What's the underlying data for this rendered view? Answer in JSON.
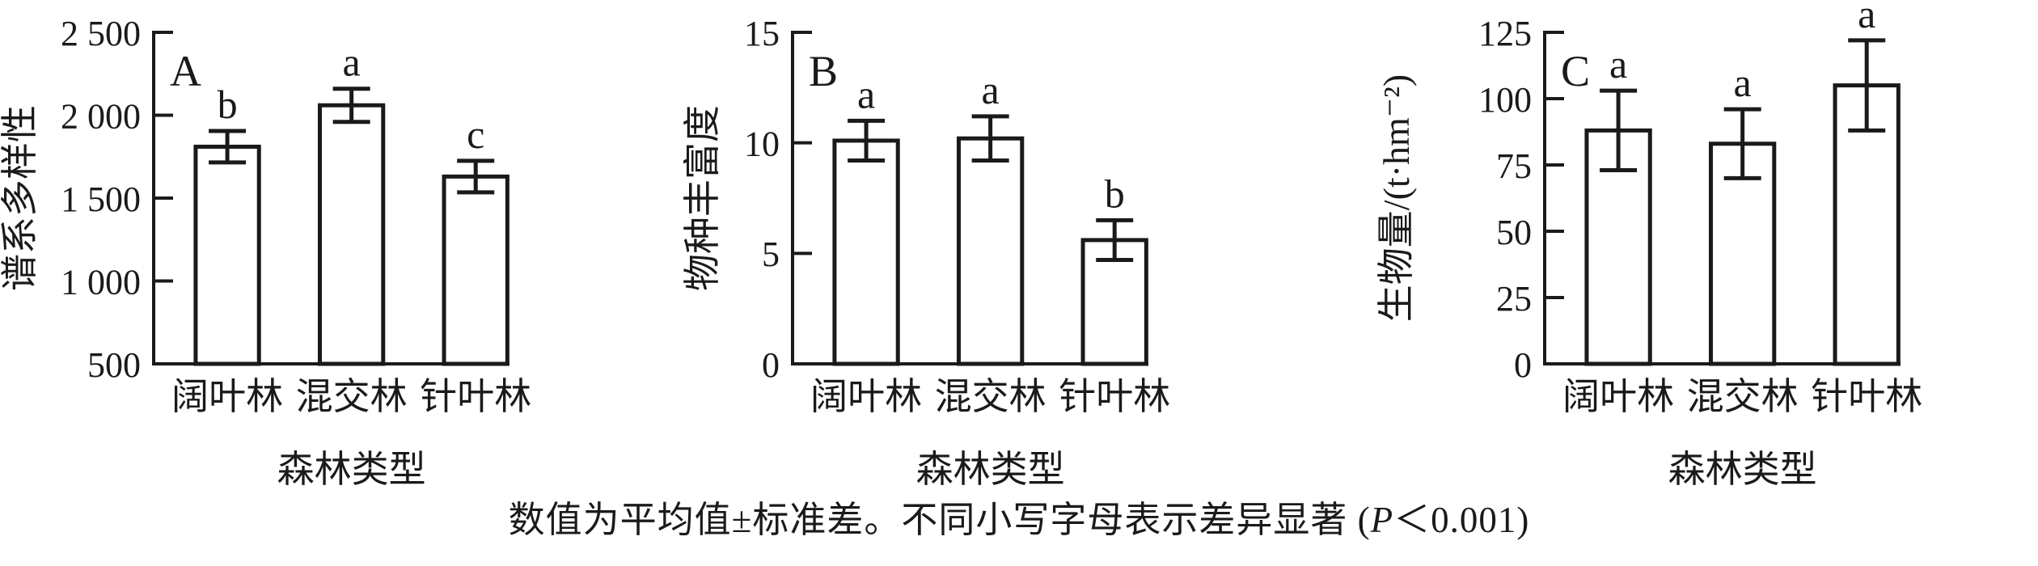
{
  "figure": {
    "caption": {
      "prefix": "数值为平均值±标准差。不同小写字母表示差异显著 (",
      "p": "P",
      "suffix": "＜0.001)"
    }
  },
  "chart_data": [
    {
      "type": "bar",
      "panel_letter": "A",
      "title": "",
      "ylabel": "谱系多样性",
      "xlabel": "森林类型",
      "categories": [
        "阔叶林",
        "混交林",
        "针叶林"
      ],
      "values": [
        1810,
        2060,
        1630
      ],
      "errors": [
        95,
        100,
        95
      ],
      "sig_letters": [
        "b",
        "a",
        "c"
      ],
      "ylim": [
        500,
        2500
      ],
      "yticks": [
        {
          "value": 2500,
          "label": "2 500"
        },
        {
          "value": 2000,
          "label": "2 000"
        },
        {
          "value": 1500,
          "label": "1 500"
        },
        {
          "value": 1000,
          "label": "1 000"
        },
        {
          "value": 500,
          "label": "500"
        }
      ],
      "grid": false,
      "bar_fill": "#ffffff",
      "stroke_color": "#1a1a1a"
    },
    {
      "type": "bar",
      "panel_letter": "B",
      "title": "",
      "ylabel": "物种丰富度",
      "xlabel": "森林类型",
      "categories": [
        "阔叶林",
        "混交林",
        "针叶林"
      ],
      "values": [
        10.1,
        10.2,
        5.6
      ],
      "errors": [
        0.9,
        1.0,
        0.9
      ],
      "sig_letters": [
        "a",
        "a",
        "b"
      ],
      "ylim": [
        0,
        15
      ],
      "yticks": [
        {
          "value": 15,
          "label": "15"
        },
        {
          "value": 10,
          "label": "10"
        },
        {
          "value": 5,
          "label": "5"
        },
        {
          "value": 0,
          "label": "0"
        }
      ],
      "grid": false,
      "bar_fill": "#ffffff",
      "stroke_color": "#1a1a1a"
    },
    {
      "type": "bar",
      "panel_letter": "C",
      "title": "",
      "ylabel": "生物量/(t·hm⁻²)",
      "xlabel": "森林类型",
      "categories": [
        "阔叶林",
        "混交林",
        "针叶林"
      ],
      "values": [
        88,
        83,
        105
      ],
      "errors": [
        15,
        13,
        17
      ],
      "sig_letters": [
        "a",
        "a",
        "a"
      ],
      "ylim": [
        0,
        125
      ],
      "yticks": [
        {
          "value": 125,
          "label": "125"
        },
        {
          "value": 100,
          "label": "100"
        },
        {
          "value": 75,
          "label": "75"
        },
        {
          "value": 50,
          "label": "50"
        },
        {
          "value": 25,
          "label": "25"
        },
        {
          "value": 0,
          "label": "0"
        }
      ],
      "grid": false,
      "bar_fill": "#ffffff",
      "stroke_color": "#1a1a1a"
    }
  ]
}
